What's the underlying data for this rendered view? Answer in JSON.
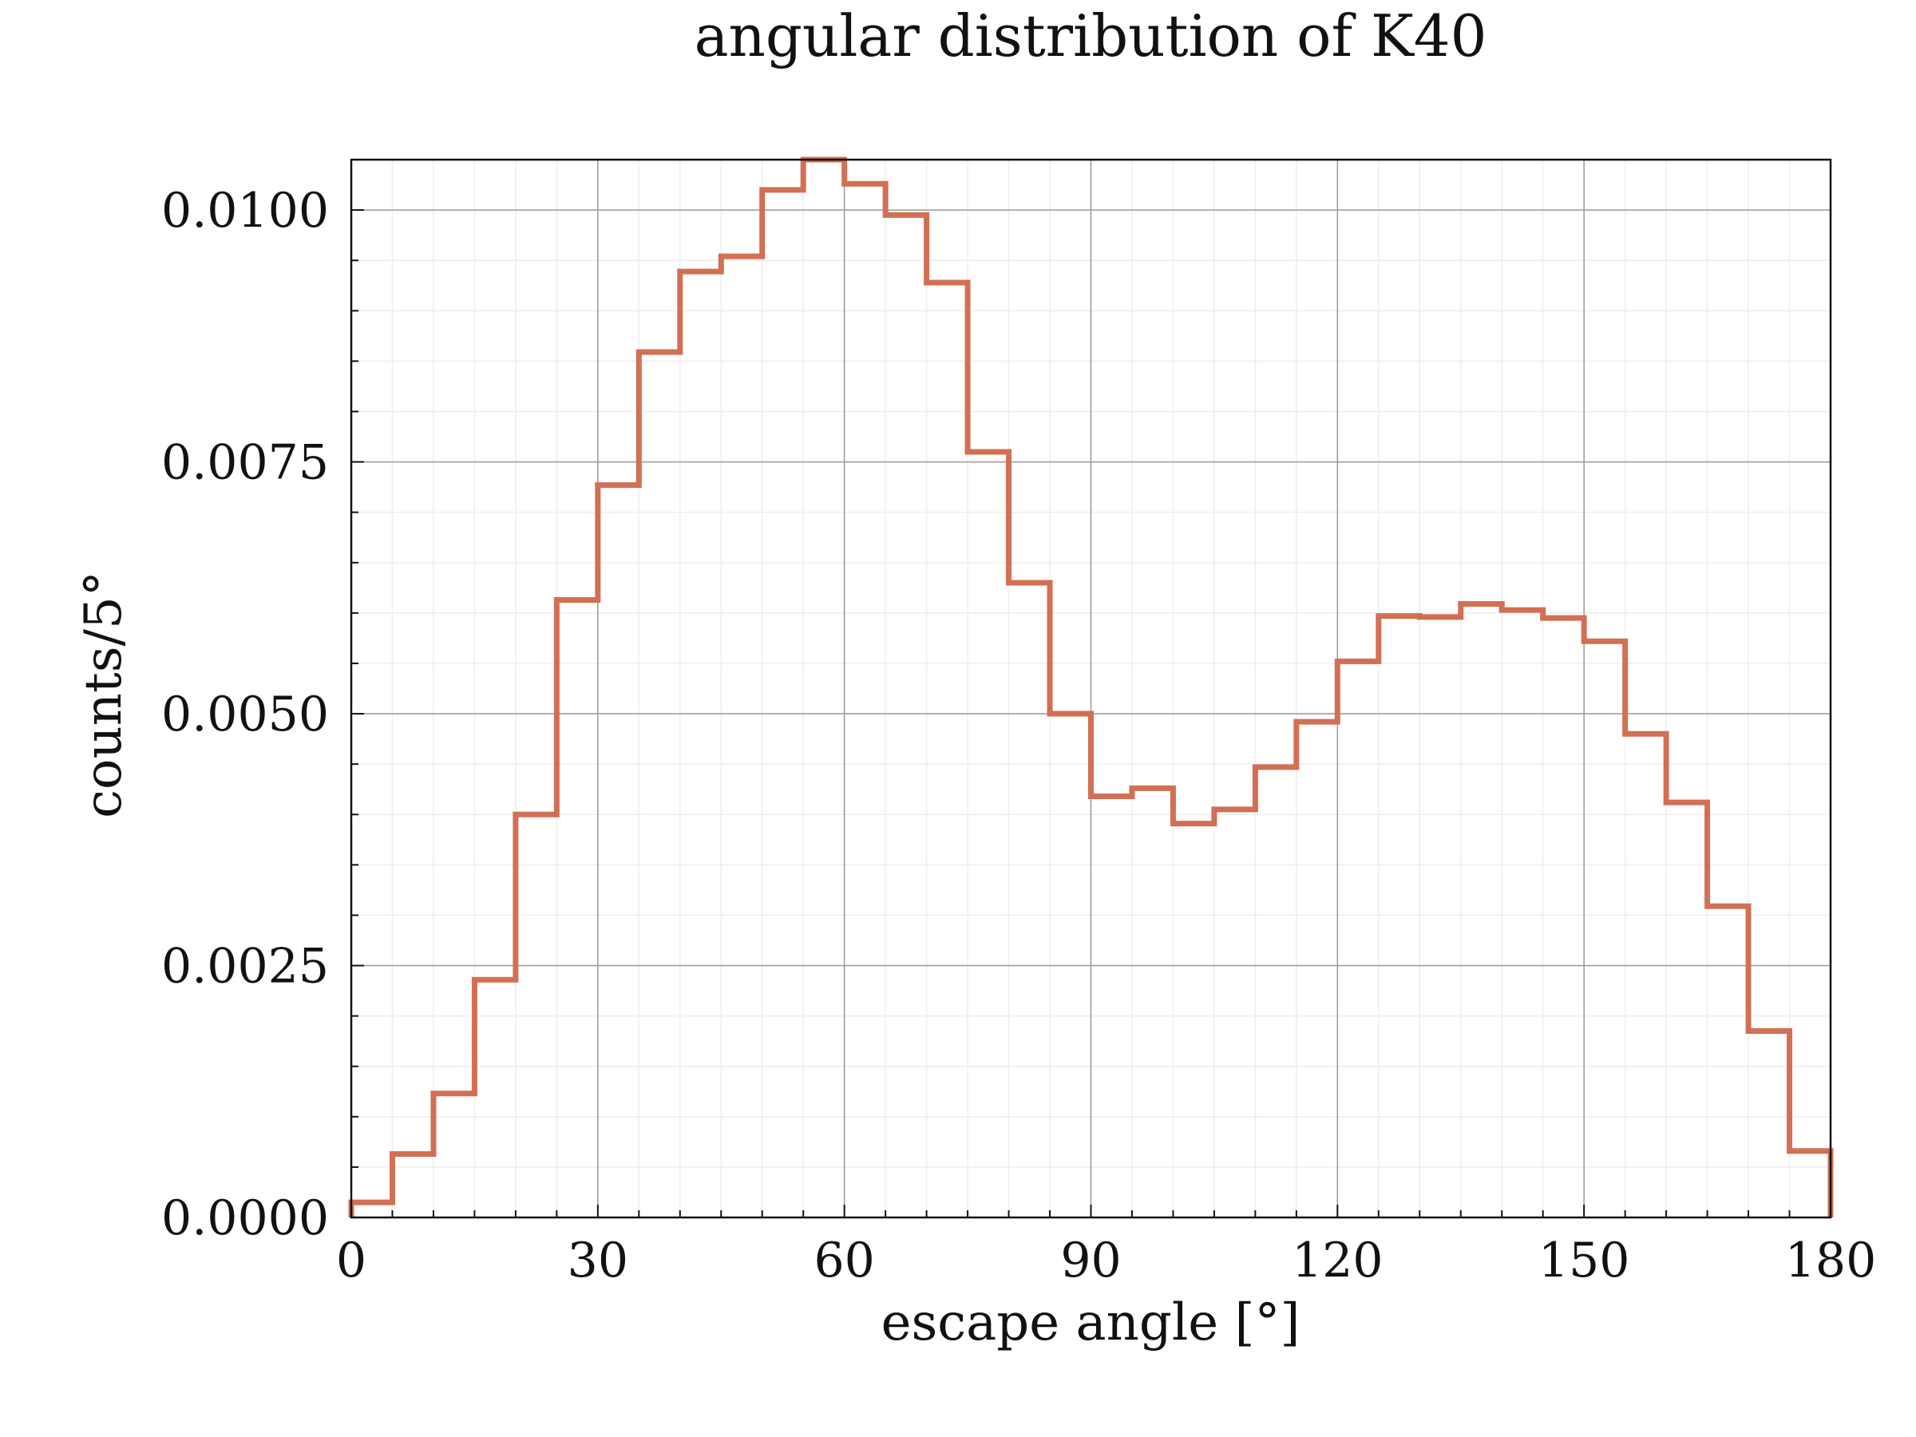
{
  "chart_data": {
    "type": "bar",
    "style": "step histogram",
    "title": "angular distribution of K40",
    "xlabel": "escape angle [°]",
    "ylabel": "counts/5°",
    "xlim": [
      0,
      180
    ],
    "ylim": [
      0,
      0.0105
    ],
    "xticks": [
      0,
      30,
      60,
      90,
      120,
      150,
      180
    ],
    "xtick_labels": [
      "0",
      "30",
      "60",
      "90",
      "120",
      "150",
      "180"
    ],
    "yticks": [
      0,
      0.0025,
      0.005,
      0.0075,
      0.01
    ],
    "ytick_labels": [
      "0.0000",
      "0.0025",
      "0.0050",
      "0.0075",
      "0.0100"
    ],
    "bin_width": 5,
    "bin_edges_start": [
      0,
      5,
      10,
      15,
      20,
      25,
      30,
      35,
      40,
      45,
      50,
      55,
      60,
      65,
      70,
      75,
      80,
      85,
      90,
      95,
      100,
      105,
      110,
      115,
      120,
      125,
      130,
      135,
      140,
      145,
      150,
      155,
      160,
      165,
      170,
      175
    ],
    "values": [
      0.00015,
      0.00063,
      0.00123,
      0.00236,
      0.004,
      0.00613,
      0.00727,
      0.00859,
      0.00939,
      0.00954,
      0.0102,
      0.0105,
      0.01026,
      0.00995,
      0.00928,
      0.0076,
      0.0063,
      0.005,
      0.00418,
      0.00426,
      0.00391,
      0.00405,
      0.00447,
      0.00492,
      0.00552,
      0.00597,
      0.00596,
      0.00609,
      0.00603,
      0.00595,
      0.00572,
      0.0048,
      0.00412,
      0.00309,
      0.00185,
      0.00066
    ],
    "color": "#d26f54",
    "grid": true
  }
}
